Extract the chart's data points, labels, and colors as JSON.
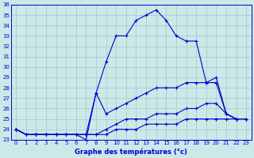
{
  "title": "Graphe des températures (°c)",
  "bg_color": "#cce8e8",
  "line_color": "#0000cc",
  "grid_color": "#99cccc",
  "xlim": [
    -0.5,
    23.5
  ],
  "ylim": [
    23,
    36
  ],
  "xticks": [
    0,
    1,
    2,
    3,
    4,
    5,
    6,
    7,
    8,
    9,
    10,
    11,
    12,
    13,
    14,
    15,
    16,
    17,
    18,
    19,
    20,
    21,
    22,
    23
  ],
  "yticks": [
    23,
    24,
    25,
    26,
    27,
    28,
    29,
    30,
    31,
    32,
    33,
    34,
    35,
    36
  ],
  "s1_x": [
    0,
    1,
    2,
    3,
    4,
    5,
    6,
    7,
    8,
    9,
    10,
    11,
    12,
    13,
    14,
    15,
    16,
    17,
    18,
    19,
    20,
    21,
    22,
    23
  ],
  "s1_y": [
    24,
    23.5,
    23.5,
    23.5,
    23.5,
    23.5,
    23.5,
    23.5,
    27.5,
    30.5,
    33,
    33,
    34.5,
    35,
    35.5,
    34.5,
    33,
    32.5,
    32.5,
    28.5,
    29,
    25.5,
    25,
    25
  ],
  "s2_x": [
    0,
    1,
    2,
    3,
    4,
    5,
    6,
    7,
    8,
    9,
    10,
    11,
    12,
    13,
    14,
    15,
    16,
    17,
    18,
    19,
    20,
    21,
    22,
    23
  ],
  "s2_y": [
    24,
    23.5,
    23.5,
    23.5,
    23.5,
    23.5,
    23.5,
    23,
    27.5,
    25.5,
    26,
    26.5,
    27,
    27.5,
    28,
    28,
    28,
    28.5,
    28.5,
    28.5,
    28.5,
    25.5,
    25,
    25
  ],
  "s3_x": [
    0,
    1,
    2,
    3,
    4,
    5,
    6,
    7,
    8,
    9,
    10,
    11,
    12,
    13,
    14,
    15,
    16,
    17,
    18,
    19,
    20,
    21,
    22,
    23
  ],
  "s3_y": [
    24,
    23.5,
    23.5,
    23.5,
    23.5,
    23.5,
    23.5,
    23.5,
    23.5,
    24,
    24.5,
    25,
    25,
    25,
    25.5,
    25.5,
    25.5,
    26,
    26,
    26.5,
    26.5,
    25.5,
    25,
    25
  ],
  "s4_x": [
    0,
    1,
    2,
    3,
    4,
    5,
    6,
    7,
    8,
    9,
    10,
    11,
    12,
    13,
    14,
    15,
    16,
    17,
    18,
    19,
    20,
    21,
    22,
    23
  ],
  "s4_y": [
    24,
    23.5,
    23.5,
    23.5,
    23.5,
    23.5,
    23.5,
    23.5,
    23.5,
    23.5,
    24,
    24,
    24,
    24.5,
    24.5,
    24.5,
    24.5,
    25,
    25,
    25,
    25,
    25,
    25,
    25
  ]
}
